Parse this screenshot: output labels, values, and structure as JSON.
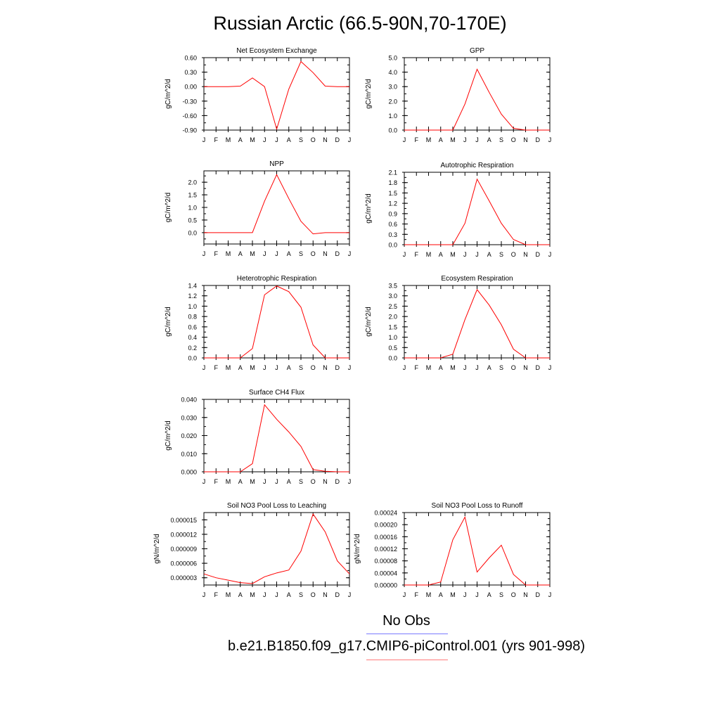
{
  "title": "Russian Arctic (66.5-90N,70-170E)",
  "legend": [
    {
      "label": "No Obs",
      "color": "#7b7bff"
    },
    {
      "label": "b.e21.B1850.f09_g17.CMIP6-piControl.001 (yrs 901-998)",
      "color": "#ff7b7b"
    }
  ],
  "chart_data": [
    {
      "type": "line",
      "title": "Net Ecosystem Exchange",
      "ylabel": "gC/m^2/d",
      "x": [
        "J",
        "F",
        "M",
        "A",
        "M",
        "J",
        "J",
        "A",
        "S",
        "O",
        "N",
        "D",
        "J"
      ],
      "ylim": [
        -0.9,
        0.6
      ],
      "yticks": [
        "0.60",
        "0.30",
        "0.00",
        "-0.30",
        "-0.60",
        "-0.90"
      ],
      "ytick_values": [
        0.6,
        0.3,
        0.0,
        -0.3,
        -0.6,
        -0.9
      ],
      "series": [
        {
          "color": "#ff0000",
          "values": [
            0.0,
            0.0,
            0.0,
            0.01,
            0.18,
            0.0,
            -0.88,
            -0.05,
            0.52,
            0.29,
            0.01,
            0.0,
            0.0
          ]
        }
      ]
    },
    {
      "type": "line",
      "title": "GPP",
      "ylabel": "gC/m^2/d",
      "x": [
        "J",
        "F",
        "M",
        "A",
        "M",
        "J",
        "J",
        "A",
        "S",
        "O",
        "N",
        "D",
        "J"
      ],
      "ylim": [
        0,
        5
      ],
      "yticks": [
        "5.0",
        "4.0",
        "3.0",
        "2.0",
        "1.0",
        "0.0"
      ],
      "ytick_values": [
        5,
        4,
        3,
        2,
        1,
        0
      ],
      "series": [
        {
          "color": "#ff0000",
          "values": [
            0.0,
            0.0,
            0.0,
            0.0,
            0.0,
            1.8,
            4.2,
            2.6,
            1.1,
            0.12,
            0.0,
            0.0,
            0.0
          ]
        }
      ]
    },
    {
      "type": "line",
      "title": "NPP",
      "ylabel": "gC/m^2/d",
      "x": [
        "J",
        "F",
        "M",
        "A",
        "M",
        "J",
        "J",
        "A",
        "S",
        "O",
        "N",
        "D",
        "J"
      ],
      "ylim": [
        -0.45,
        2.45
      ],
      "yticks": [
        "2.0",
        "1.5",
        "1.0",
        "0.5",
        "0.0"
      ],
      "ytick_values": [
        2.0,
        1.5,
        1.0,
        0.5,
        0.0
      ],
      "series": [
        {
          "color": "#ff0000",
          "values": [
            0.0,
            0.0,
            0.0,
            0.0,
            0.0,
            1.25,
            2.3,
            1.35,
            0.45,
            -0.05,
            0.0,
            0.0,
            0.0
          ]
        }
      ]
    },
    {
      "type": "line",
      "title": "Autotrophic Respiration",
      "ylabel": "gC/m^2/d",
      "x": [
        "J",
        "F",
        "M",
        "A",
        "M",
        "J",
        "J",
        "A",
        "S",
        "O",
        "N",
        "D",
        "J"
      ],
      "ylim": [
        0,
        2.1
      ],
      "yticks": [
        "2.1",
        "1.8",
        "1.5",
        "1.2",
        "0.9",
        "0.6",
        "0.3",
        "0.0"
      ],
      "ytick_values": [
        2.1,
        1.8,
        1.5,
        1.2,
        0.9,
        0.6,
        0.3,
        0.0
      ],
      "series": [
        {
          "color": "#ff0000",
          "values": [
            0.0,
            0.0,
            0.0,
            0.0,
            0.0,
            0.62,
            1.9,
            1.27,
            0.62,
            0.15,
            0.0,
            0.0,
            0.0
          ]
        }
      ]
    },
    {
      "type": "line",
      "title": "Heterotrophic Respiration",
      "ylabel": "gC/m^2/d",
      "x": [
        "J",
        "F",
        "M",
        "A",
        "M",
        "J",
        "J",
        "A",
        "S",
        "O",
        "N",
        "D",
        "J"
      ],
      "ylim": [
        0,
        1.4
      ],
      "yticks": [
        "1.4",
        "1.2",
        "1.0",
        "0.8",
        "0.6",
        "0.4",
        "0.2",
        "0.0"
      ],
      "ytick_values": [
        1.4,
        1.2,
        1.0,
        0.8,
        0.6,
        0.4,
        0.2,
        0.0
      ],
      "series": [
        {
          "color": "#ff0000",
          "values": [
            0.0,
            0.0,
            0.0,
            0.0,
            0.18,
            1.22,
            1.39,
            1.28,
            0.98,
            0.25,
            0.0,
            0.0,
            0.0
          ]
        }
      ]
    },
    {
      "type": "line",
      "title": "Ecosystem Respiration",
      "ylabel": "gC/m^2/d",
      "x": [
        "J",
        "F",
        "M",
        "A",
        "M",
        "J",
        "J",
        "A",
        "S",
        "O",
        "N",
        "D",
        "J"
      ],
      "ylim": [
        0,
        3.5
      ],
      "yticks": [
        "3.5",
        "3.0",
        "2.5",
        "2.0",
        "1.5",
        "1.0",
        "0.5",
        "0.0"
      ],
      "ytick_values": [
        3.5,
        3.0,
        2.5,
        2.0,
        1.5,
        1.0,
        0.5,
        0.0
      ],
      "series": [
        {
          "color": "#ff0000",
          "values": [
            0.0,
            0.0,
            0.0,
            0.0,
            0.18,
            1.85,
            3.3,
            2.55,
            1.6,
            0.42,
            0.0,
            0.0,
            0.0
          ]
        }
      ]
    },
    {
      "type": "line",
      "title": "Surface CH4 Flux",
      "ylabel": "gC/m^2/d",
      "x": [
        "J",
        "F",
        "M",
        "A",
        "M",
        "J",
        "J",
        "A",
        "S",
        "O",
        "N",
        "D",
        "J"
      ],
      "ylim": [
        0,
        0.04
      ],
      "yticks": [
        "0.040",
        "0.030",
        "0.020",
        "0.010",
        "0.000"
      ],
      "ytick_values": [
        0.04,
        0.03,
        0.02,
        0.01,
        0.0
      ],
      "series": [
        {
          "color": "#ff0000",
          "values": [
            0.0,
            0.0,
            0.0,
            0.0,
            0.0045,
            0.037,
            0.029,
            0.022,
            0.014,
            0.0012,
            0.0003,
            0.0,
            0.0
          ]
        }
      ]
    },
    {
      "type": "line",
      "title": "Soil NO3 Pool Loss to Leaching",
      "ylabel": "gN/m^2/d",
      "x": [
        "J",
        "F",
        "M",
        "A",
        "M",
        "J",
        "J",
        "A",
        "S",
        "O",
        "N",
        "D",
        "J"
      ],
      "ylim": [
        1.5e-06,
        1.65e-05
      ],
      "yticks": [
        "0.000015",
        "0.000012",
        "0.000009",
        "0.000006",
        "0.000003"
      ],
      "ytick_values": [
        1.5e-05,
        1.2e-05,
        9e-06,
        6e-06,
        3e-06
      ],
      "series": [
        {
          "color": "#ff0000",
          "values": [
            3.8e-06,
            3e-06,
            2.5e-06,
            2e-06,
            1.8e-06,
            3.2e-06,
            4e-06,
            4.6e-06,
            8.5e-06,
            1.62e-05,
            1.25e-05,
            6.5e-06,
            3.8e-06
          ]
        }
      ]
    },
    {
      "type": "line",
      "title": "Soil NO3 Pool Loss to Runoff",
      "ylabel": "gN/m^2/d",
      "x": [
        "J",
        "F",
        "M",
        "A",
        "M",
        "J",
        "J",
        "A",
        "S",
        "O",
        "N",
        "D",
        "J"
      ],
      "ylim": [
        0,
        0.00024
      ],
      "yticks": [
        "0.00024",
        "0.00020",
        "0.00016",
        "0.00012",
        "0.00008",
        "0.00004",
        "0.00000"
      ],
      "ytick_values": [
        0.00024,
        0.0002,
        0.00016,
        0.00012,
        8e-05,
        4e-05,
        0.0
      ],
      "series": [
        {
          "color": "#ff0000",
          "values": [
            0.0,
            0.0,
            0.0,
            1e-05,
            0.00015,
            0.000225,
            4.3e-05,
            9e-05,
            0.000132,
            3.5e-05,
            0.0,
            0.0,
            0.0
          ]
        }
      ]
    }
  ]
}
